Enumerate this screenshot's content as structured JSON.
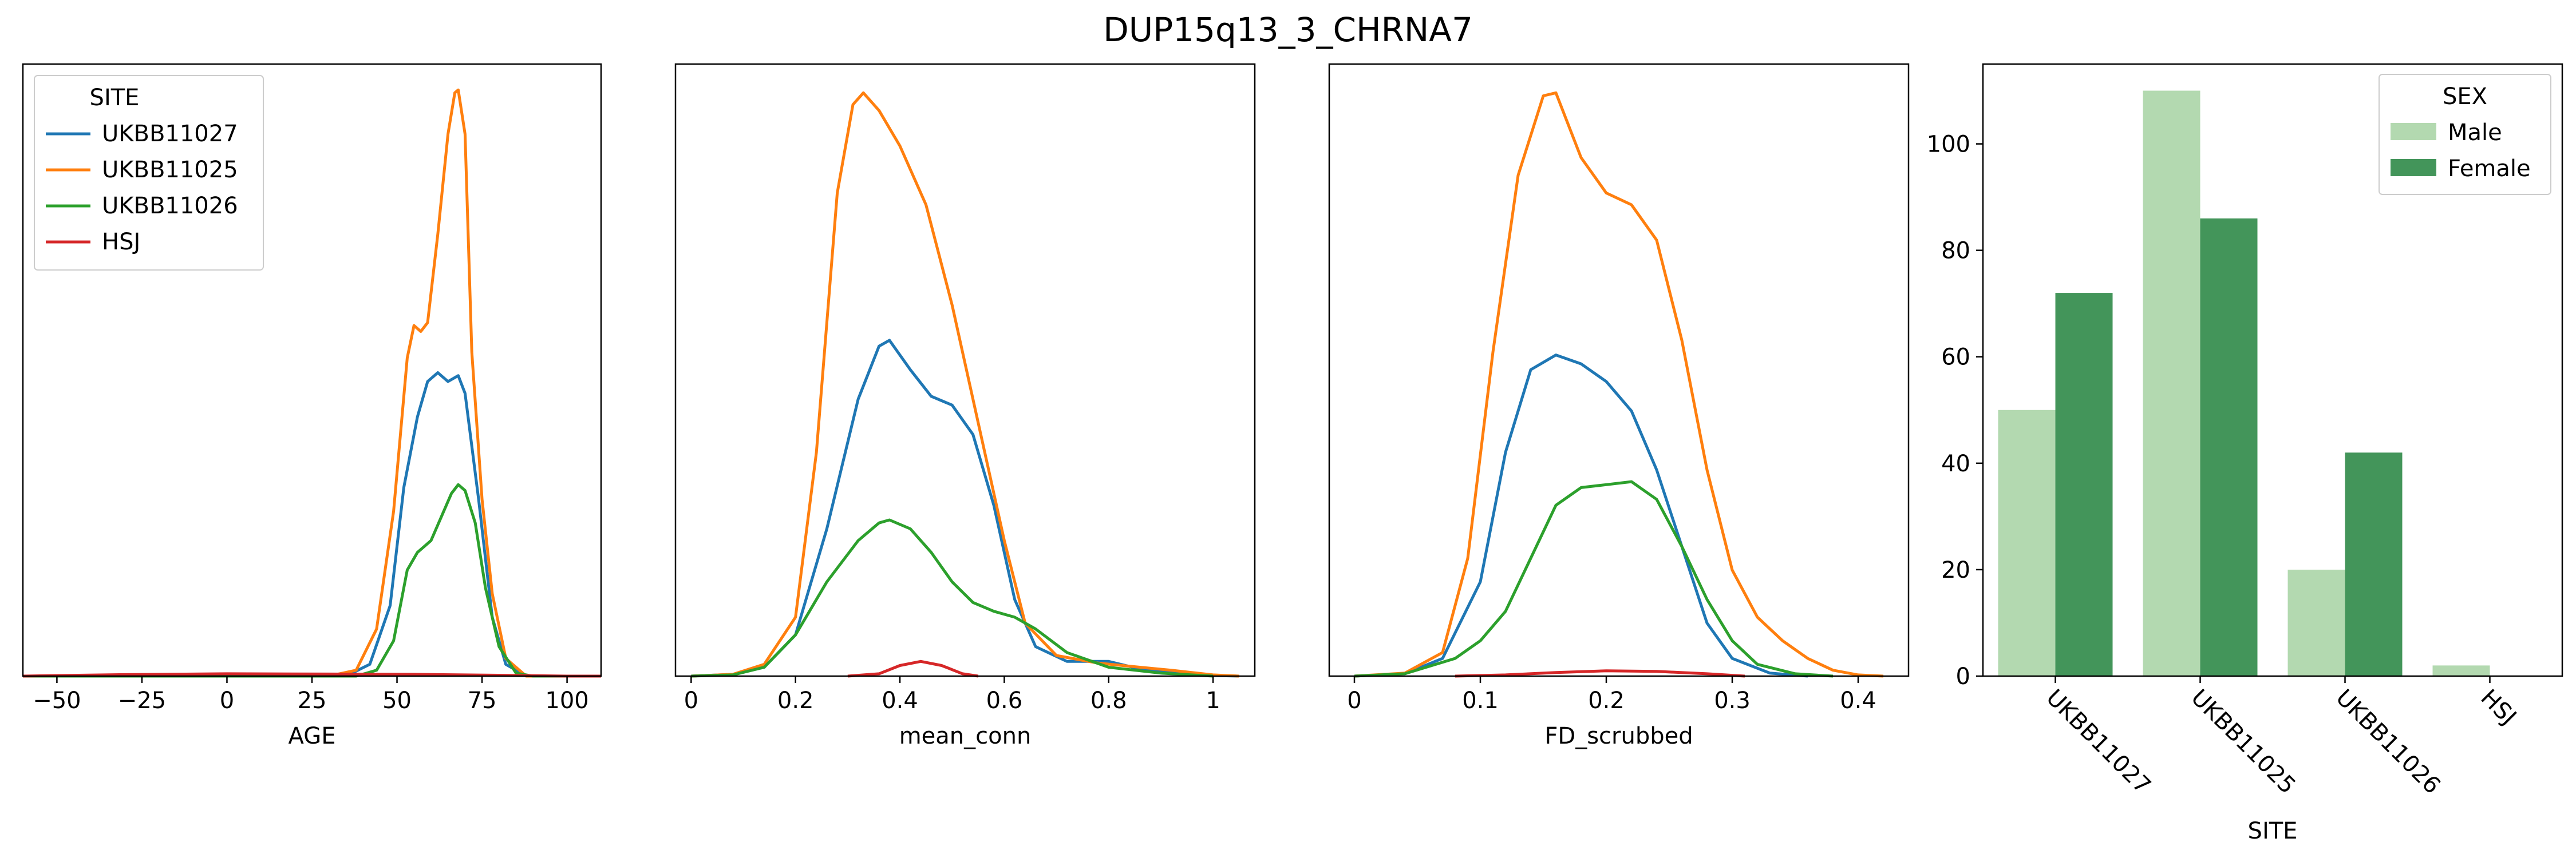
{
  "figure": {
    "title": "DUP15q13_3_CHRNA7"
  },
  "chart_data": [
    {
      "type": "line",
      "subtype": "kde",
      "xlabel": "AGE",
      "ylabel": "",
      "xlim": [
        -60,
        110
      ],
      "ylim": [
        0,
        1.0
      ],
      "x_ticks": [
        -50,
        -25,
        0,
        25,
        50,
        75,
        100
      ],
      "y_ticks_shown": false,
      "legend": {
        "title": "SITE",
        "position": "upper-left"
      },
      "series": [
        {
          "name": "UKBB11027",
          "color": "#1f77b4",
          "points": [
            [
              -60,
              0
            ],
            [
              35,
              0
            ],
            [
              42,
              0.02
            ],
            [
              48,
              0.12
            ],
            [
              52,
              0.32
            ],
            [
              56,
              0.44
            ],
            [
              59,
              0.5
            ],
            [
              62,
              0.515
            ],
            [
              65,
              0.5
            ],
            [
              68,
              0.51
            ],
            [
              70,
              0.48
            ],
            [
              74,
              0.3
            ],
            [
              78,
              0.1
            ],
            [
              82,
              0.02
            ],
            [
              88,
              0
            ],
            [
              110,
              0
            ]
          ]
        },
        {
          "name": "UKBB11025",
          "color": "#ff7f0e",
          "points": [
            [
              -60,
              0
            ],
            [
              30,
              0
            ],
            [
              38,
              0.01
            ],
            [
              44,
              0.08
            ],
            [
              49,
              0.28
            ],
            [
              53,
              0.54
            ],
            [
              55,
              0.595
            ],
            [
              57,
              0.585
            ],
            [
              59,
              0.6
            ],
            [
              62,
              0.75
            ],
            [
              65,
              0.92
            ],
            [
              67,
              0.99
            ],
            [
              68,
              0.995
            ],
            [
              70,
              0.92
            ],
            [
              72,
              0.55
            ],
            [
              75,
              0.3
            ],
            [
              78,
              0.14
            ],
            [
              82,
              0.03
            ],
            [
              88,
              0
            ],
            [
              110,
              0
            ]
          ]
        },
        {
          "name": "UKBB11026",
          "color": "#2ca02c",
          "points": [
            [
              -60,
              0
            ],
            [
              38,
              0
            ],
            [
              44,
              0.01
            ],
            [
              49,
              0.06
            ],
            [
              53,
              0.18
            ],
            [
              56,
              0.21
            ],
            [
              60,
              0.23
            ],
            [
              63,
              0.27
            ],
            [
              66,
              0.31
            ],
            [
              68,
              0.325
            ],
            [
              70,
              0.315
            ],
            [
              73,
              0.26
            ],
            [
              76,
              0.15
            ],
            [
              80,
              0.05
            ],
            [
              85,
              0.005
            ],
            [
              90,
              0
            ],
            [
              110,
              0
            ]
          ]
        },
        {
          "name": "HSJ",
          "color": "#d62728",
          "points": [
            [
              -60,
              0
            ],
            [
              -50,
              0.001
            ],
            [
              -30,
              0.0025
            ],
            [
              0,
              0.004
            ],
            [
              30,
              0.0035
            ],
            [
              55,
              0.003
            ],
            [
              80,
              0.0015
            ],
            [
              100,
              0
            ],
            [
              110,
              0
            ]
          ]
        }
      ]
    },
    {
      "type": "line",
      "subtype": "kde",
      "xlabel": "mean_conn",
      "ylabel": "",
      "xlim": [
        -0.03,
        1.08
      ],
      "ylim": [
        0,
        1.0
      ],
      "x_ticks": [
        0.0,
        0.2,
        0.4,
        0.6,
        0.8,
        1.0
      ],
      "y_ticks_shown": false,
      "series": [
        {
          "name": "UKBB11027",
          "color": "#1f77b4",
          "points": [
            [
              0.0,
              0
            ],
            [
              0.08,
              0.003
            ],
            [
              0.14,
              0.015
            ],
            [
              0.2,
              0.07
            ],
            [
              0.26,
              0.25
            ],
            [
              0.32,
              0.47
            ],
            [
              0.36,
              0.56
            ],
            [
              0.38,
              0.57
            ],
            [
              0.42,
              0.52
            ],
            [
              0.46,
              0.475
            ],
            [
              0.5,
              0.46
            ],
            [
              0.54,
              0.41
            ],
            [
              0.58,
              0.29
            ],
            [
              0.62,
              0.13
            ],
            [
              0.66,
              0.05
            ],
            [
              0.72,
              0.025
            ],
            [
              0.8,
              0.025
            ],
            [
              0.86,
              0.012
            ],
            [
              0.92,
              0.006
            ],
            [
              1.0,
              0.001
            ],
            [
              1.05,
              0
            ]
          ]
        },
        {
          "name": "UKBB11025",
          "color": "#ff7f0e",
          "points": [
            [
              0.0,
              0
            ],
            [
              0.08,
              0.003
            ],
            [
              0.14,
              0.02
            ],
            [
              0.2,
              0.1
            ],
            [
              0.24,
              0.38
            ],
            [
              0.28,
              0.82
            ],
            [
              0.31,
              0.97
            ],
            [
              0.33,
              0.99
            ],
            [
              0.36,
              0.96
            ],
            [
              0.4,
              0.9
            ],
            [
              0.45,
              0.8
            ],
            [
              0.5,
              0.63
            ],
            [
              0.55,
              0.43
            ],
            [
              0.6,
              0.23
            ],
            [
              0.64,
              0.09
            ],
            [
              0.7,
              0.035
            ],
            [
              0.78,
              0.022
            ],
            [
              0.86,
              0.015
            ],
            [
              0.92,
              0.01
            ],
            [
              1.0,
              0.002
            ],
            [
              1.05,
              0
            ]
          ]
        },
        {
          "name": "UKBB11026",
          "color": "#2ca02c",
          "points": [
            [
              0.0,
              0
            ],
            [
              0.08,
              0.002
            ],
            [
              0.14,
              0.015
            ],
            [
              0.2,
              0.07
            ],
            [
              0.26,
              0.16
            ],
            [
              0.32,
              0.23
            ],
            [
              0.36,
              0.26
            ],
            [
              0.38,
              0.265
            ],
            [
              0.42,
              0.25
            ],
            [
              0.46,
              0.21
            ],
            [
              0.5,
              0.16
            ],
            [
              0.54,
              0.125
            ],
            [
              0.58,
              0.11
            ],
            [
              0.62,
              0.1
            ],
            [
              0.66,
              0.08
            ],
            [
              0.72,
              0.04
            ],
            [
              0.8,
              0.015
            ],
            [
              0.9,
              0.005
            ],
            [
              1.0,
              0
            ]
          ]
        },
        {
          "name": "HSJ",
          "color": "#d62728",
          "points": [
            [
              0.3,
              0
            ],
            [
              0.36,
              0.004
            ],
            [
              0.4,
              0.018
            ],
            [
              0.44,
              0.025
            ],
            [
              0.48,
              0.018
            ],
            [
              0.52,
              0.004
            ],
            [
              0.55,
              0
            ]
          ]
        }
      ]
    },
    {
      "type": "line",
      "subtype": "kde",
      "xlabel": "FD_scrubbed",
      "ylabel": "",
      "xlim": [
        -0.02,
        0.44
      ],
      "ylim": [
        0,
        1.0
      ],
      "x_ticks": [
        0.0,
        0.1,
        0.2,
        0.3,
        0.4
      ],
      "y_ticks_shown": false,
      "series": [
        {
          "name": "UKBB11027",
          "color": "#1f77b4",
          "points": [
            [
              0.0,
              0
            ],
            [
              0.04,
              0.004
            ],
            [
              0.07,
              0.03
            ],
            [
              0.1,
              0.16
            ],
            [
              0.12,
              0.38
            ],
            [
              0.14,
              0.52
            ],
            [
              0.16,
              0.545
            ],
            [
              0.18,
              0.53
            ],
            [
              0.2,
              0.5
            ],
            [
              0.22,
              0.45
            ],
            [
              0.24,
              0.35
            ],
            [
              0.26,
              0.22
            ],
            [
              0.28,
              0.09
            ],
            [
              0.3,
              0.03
            ],
            [
              0.33,
              0.005
            ],
            [
              0.36,
              0
            ]
          ]
        },
        {
          "name": "UKBB11025",
          "color": "#ff7f0e",
          "points": [
            [
              0.0,
              0
            ],
            [
              0.04,
              0.005
            ],
            [
              0.07,
              0.04
            ],
            [
              0.09,
              0.2
            ],
            [
              0.11,
              0.55
            ],
            [
              0.13,
              0.85
            ],
            [
              0.15,
              0.985
            ],
            [
              0.16,
              0.99
            ],
            [
              0.18,
              0.88
            ],
            [
              0.2,
              0.82
            ],
            [
              0.22,
              0.8
            ],
            [
              0.24,
              0.74
            ],
            [
              0.26,
              0.57
            ],
            [
              0.28,
              0.35
            ],
            [
              0.3,
              0.18
            ],
            [
              0.32,
              0.1
            ],
            [
              0.34,
              0.06
            ],
            [
              0.36,
              0.03
            ],
            [
              0.38,
              0.01
            ],
            [
              0.4,
              0.002
            ],
            [
              0.42,
              0
            ]
          ]
        },
        {
          "name": "UKBB11026",
          "color": "#2ca02c",
          "points": [
            [
              0.0,
              0
            ],
            [
              0.04,
              0.004
            ],
            [
              0.08,
              0.03
            ],
            [
              0.1,
              0.06
            ],
            [
              0.12,
              0.11
            ],
            [
              0.14,
              0.2
            ],
            [
              0.16,
              0.29
            ],
            [
              0.18,
              0.32
            ],
            [
              0.2,
              0.325
            ],
            [
              0.22,
              0.33
            ],
            [
              0.24,
              0.3
            ],
            [
              0.26,
              0.22
            ],
            [
              0.28,
              0.13
            ],
            [
              0.3,
              0.06
            ],
            [
              0.32,
              0.02
            ],
            [
              0.35,
              0.004
            ],
            [
              0.38,
              0
            ]
          ]
        },
        {
          "name": "HSJ",
          "color": "#d62728",
          "points": [
            [
              0.08,
              0
            ],
            [
              0.12,
              0.002
            ],
            [
              0.16,
              0.006
            ],
            [
              0.2,
              0.009
            ],
            [
              0.24,
              0.008
            ],
            [
              0.28,
              0.004
            ],
            [
              0.31,
              0
            ]
          ]
        }
      ]
    },
    {
      "type": "bar",
      "xlabel": "SITE",
      "ylabel": "",
      "categories": [
        "UKBB11027",
        "UKBB11025",
        "UKBB11026",
        "HSJ"
      ],
      "ylim": [
        0,
        115
      ],
      "y_ticks": [
        0,
        20,
        40,
        60,
        80,
        100
      ],
      "tick_rotation": -45,
      "legend": {
        "title": "SEX",
        "position": "upper-right"
      },
      "series": [
        {
          "name": "Male",
          "color": "#b3d9b0",
          "values": [
            50,
            110,
            20,
            2
          ]
        },
        {
          "name": "Female",
          "color": "#43955a",
          "values": [
            72,
            86,
            42,
            0
          ]
        }
      ]
    }
  ]
}
